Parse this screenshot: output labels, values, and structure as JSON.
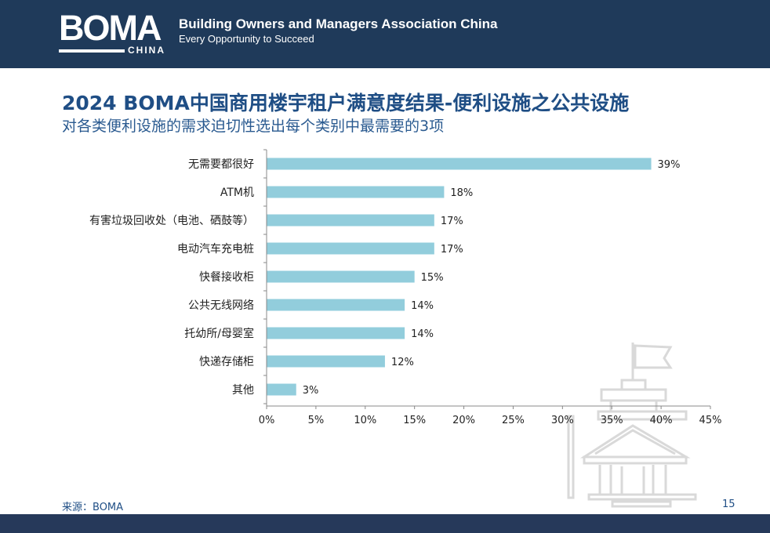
{
  "header": {
    "logo_text": "BOMA",
    "logo_sub": "CHINA",
    "org_name": "Building Owners and Managers Association China",
    "slogan": "Every Opportunity to Succeed",
    "bg_color": "#1f3a5a"
  },
  "title": "2024 BOMA中国商用楼宇租户满意度结果-便利设施之公共设施",
  "subtitle": "对各类便利设施的需求迫切性选出每个类别中最需要的3项",
  "chart_data": {
    "type": "bar",
    "orientation": "horizontal",
    "categories": [
      "无需要都很好",
      "ATM机",
      "有害垃圾回收处（电池、硒鼓等）",
      "电动汽车充电桩",
      "快餐接收柜",
      "公共无线网络",
      "托幼所/母婴室",
      "快递存储柜",
      "其他"
    ],
    "values": [
      39,
      18,
      17,
      17,
      15,
      14,
      14,
      12,
      3
    ],
    "value_labels": [
      "39%",
      "18%",
      "17%",
      "17%",
      "15%",
      "14%",
      "14%",
      "12%",
      "3%"
    ],
    "xlim": [
      0,
      45
    ],
    "x_ticks": [
      "0%",
      "5%",
      "10%",
      "15%",
      "20%",
      "25%",
      "30%",
      "35%",
      "40%",
      "45%"
    ],
    "grid": false,
    "bar_color": "#92cddc",
    "title": "",
    "xlabel": "",
    "ylabel": ""
  },
  "footer": {
    "source": "来源：BOMA",
    "page": "15",
    "bar_color": "#26395a"
  },
  "watermark_icon": "building-watermark-icon"
}
